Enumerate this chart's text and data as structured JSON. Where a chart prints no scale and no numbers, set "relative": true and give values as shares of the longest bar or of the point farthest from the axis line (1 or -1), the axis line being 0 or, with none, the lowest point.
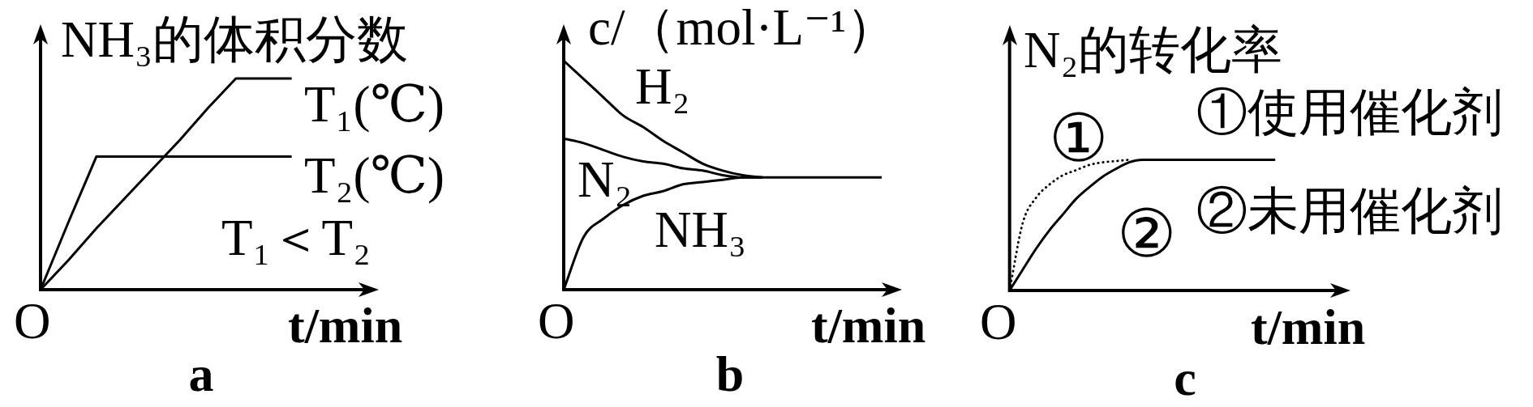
{
  "chart_data": [
    {
      "type": "line",
      "title": "a",
      "xlabel": "t/min",
      "ylabel": "NH₃的体积分数",
      "relative": true,
      "marker": "none",
      "categories": [
        null,
        null,
        null,
        null,
        null,
        null,
        null,
        null,
        null,
        null
      ],
      "series": [
        {
          "name": "T₁(℃)",
          "color": "#000000",
          "values": [
            0,
            0.14,
            0.29,
            0.43,
            0.57,
            0.71,
            0.86,
            1,
            1,
            1
          ]
        },
        {
          "name": "T₂(℃)",
          "color": "#000000",
          "values": [
            0,
            0.32,
            0.63,
            0.63,
            0.63,
            0.63,
            0.63,
            0.63,
            0.63,
            0.63
          ]
        }
      ],
      "annotations": [
        "O",
        "T₁＜T₂"
      ]
    },
    {
      "type": "line",
      "title": "b",
      "xlabel": "t/min",
      "ylabel": "c/（mol·L⁻¹）",
      "relative": true,
      "marker": "none",
      "categories": [
        null,
        null,
        null,
        null,
        null,
        null,
        null,
        null,
        null,
        null,
        null,
        null,
        null,
        null,
        null,
        null,
        null
      ],
      "series": [
        {
          "name": "H₂",
          "color": "#000000",
          "values": [
            1,
            0.92,
            0.84,
            0.76,
            0.71,
            0.65,
            0.6,
            0.55,
            0.52,
            0.5,
            0.49,
            null,
            null,
            null,
            null,
            null,
            null
          ]
        },
        {
          "name": "N₂",
          "color": "#000000",
          "values": [
            0.66,
            0.64,
            0.61,
            0.58,
            0.56,
            0.55,
            0.53,
            0.52,
            0.5,
            0.49,
            0.49,
            null,
            null,
            null,
            null,
            null,
            null
          ]
        },
        {
          "name": "NH₃",
          "color": "#000000",
          "values": [
            0,
            0.23,
            0.31,
            0.37,
            0.41,
            0.43,
            0.46,
            0.47,
            0.48,
            0.49,
            0.49,
            0.49,
            0.49,
            0.49,
            0.49,
            0.49,
            0.49
          ]
        }
      ],
      "annotations": [
        "O"
      ]
    },
    {
      "type": "line",
      "title": "c",
      "xlabel": "t/min",
      "ylabel": "N₂的转化率",
      "relative": true,
      "marker": "none",
      "categories": [
        null,
        null,
        null,
        null,
        null,
        null,
        null,
        null,
        null,
        null,
        null,
        null,
        null,
        null,
        null,
        null,
        null,
        null,
        null,
        null,
        null
      ],
      "series": [
        {
          "name": "①",
          "color": "#000000",
          "line_style": "dotted",
          "values": [
            0,
            0.52,
            0.71,
            0.81,
            0.88,
            0.92,
            0.96,
            0.98,
            0.99,
            1,
            null,
            null,
            null,
            null,
            null,
            null,
            null,
            null,
            null,
            null,
            null
          ]
        },
        {
          "name": "②",
          "color": "#000000",
          "line_style": "solid",
          "values": [
            0,
            0.16,
            0.32,
            0.46,
            0.58,
            0.7,
            0.79,
            0.87,
            0.93,
            0.98,
            1,
            1,
            1,
            1,
            1,
            1,
            1,
            1,
            1,
            1,
            1
          ]
        }
      ],
      "annotations": [
        "O",
        "①使用催化剂",
        "②未用催化剂"
      ]
    }
  ]
}
